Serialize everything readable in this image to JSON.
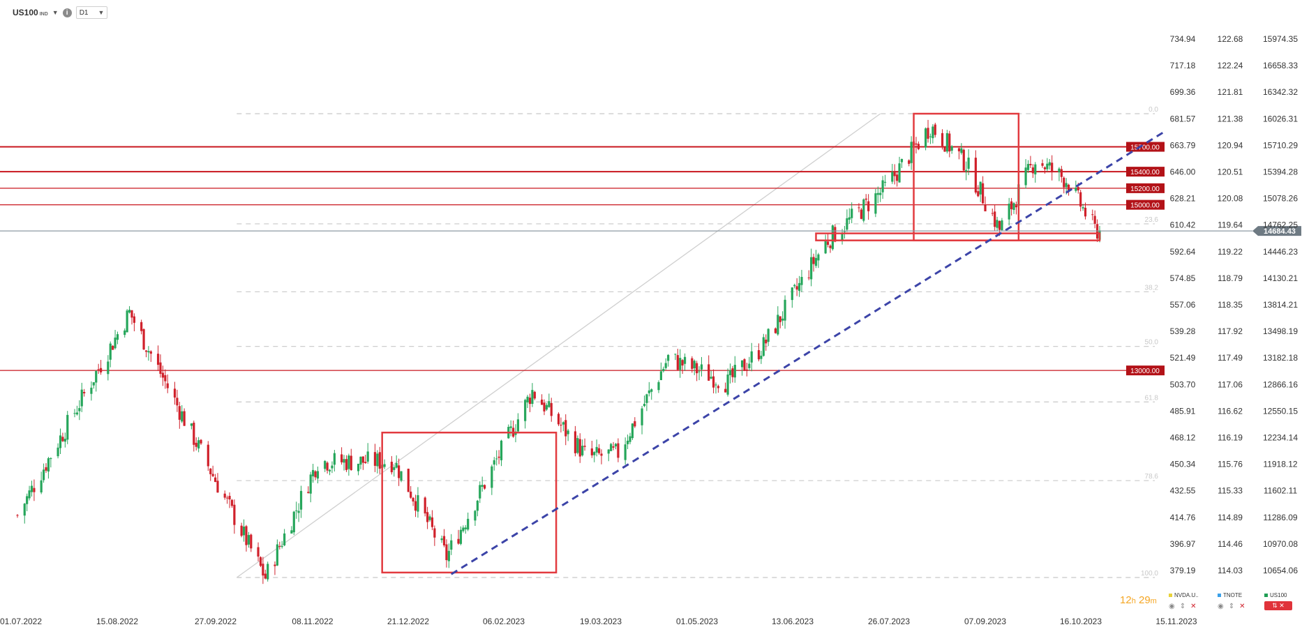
{
  "header": {
    "symbol": "US100",
    "symbol_sub": "IND",
    "timeframe": "D1"
  },
  "chart_data": {
    "type": "candlestick",
    "price_range": [
      10500,
      16100
    ],
    "last_price_label": "14684.43",
    "x_dates": [
      "01.07.2022",
      "15.08.2022",
      "27.09.2022",
      "08.11.2022",
      "21.12.2022",
      "06.02.2023",
      "19.03.2023",
      "01.05.2023",
      "13.06.2023",
      "26.07.2023",
      "07.09.2023",
      "16.10.2023",
      "15.11.2023"
    ],
    "price_axis": [
      "15974.35",
      "16658.33",
      "16342.32",
      "16026.31",
      "15710.29",
      "15394.28",
      "15078.26",
      "14762.25",
      "14446.23",
      "14130.21",
      "13814.21",
      "13498.19",
      "13182.18",
      "12866.16",
      "12550.15",
      "12234.14",
      "11918.12",
      "11602.11",
      "11286.09",
      "10970.08",
      "10654.06"
    ],
    "axis2": [
      "122.68",
      "122.24",
      "121.81",
      "121.38",
      "120.94",
      "120.51",
      "120.08",
      "119.64",
      "119.22",
      "118.79",
      "118.35",
      "117.92",
      "117.49",
      "117.06",
      "116.62",
      "116.19",
      "115.76",
      "115.33",
      "114.89",
      "114.46",
      "114.03"
    ],
    "axis1": [
      "734.94",
      "717.18",
      "699.36",
      "681.57",
      "663.79",
      "646.00",
      "628.21",
      "610.42",
      "592.64",
      "574.85",
      "557.06",
      "539.28",
      "521.49",
      "503.70",
      "485.91",
      "468.12",
      "450.34",
      "432.55",
      "414.76",
      "396.97",
      "379.19"
    ],
    "horizontal_levels": [
      {
        "label": "15700.00",
        "price": 15700
      },
      {
        "label": "15400.00",
        "price": 15400
      },
      {
        "label": "15200.00",
        "price": 15200
      },
      {
        "label": "15000.00",
        "price": 15000
      },
      {
        "label": "13000.00",
        "price": 13000
      }
    ],
    "fib_levels": [
      {
        "label": "0.0",
        "price": 16100
      },
      {
        "label": "23.6",
        "price": 14770
      },
      {
        "label": "38.2",
        "price": 13950
      },
      {
        "label": "50.0",
        "price": 13290
      },
      {
        "label": "61.8",
        "price": 12620
      },
      {
        "label": "78.6",
        "price": 11670
      },
      {
        "label": "100.0",
        "price": 10500
      }
    ],
    "anchors": [
      {
        "date": "01.07.2022",
        "price": 11250
      },
      {
        "date": "17.08.2022",
        "price": 13700
      },
      {
        "date": "13.10.2022",
        "price": 10500
      },
      {
        "date": "04.11.2022",
        "price": 11900
      },
      {
        "date": "06.12.2022",
        "price": 11900
      },
      {
        "date": "28.12.2022",
        "price": 10750
      },
      {
        "date": "02.02.2023",
        "price": 12750
      },
      {
        "date": "25.02.2023",
        "price": 11950
      },
      {
        "date": "10.03.2023",
        "price": 12000
      },
      {
        "date": "31.03.2023",
        "price": 13150
      },
      {
        "date": "25.04.2023",
        "price": 12850
      },
      {
        "date": "10.05.2023",
        "price": 13300
      },
      {
        "date": "05.06.2023",
        "price": 14550
      },
      {
        "date": "30.06.2023",
        "price": 15200
      },
      {
        "date": "19.07.2023",
        "price": 15950
      },
      {
        "date": "03.08.2023",
        "price": 15500
      },
      {
        "date": "17.08.2023",
        "price": 14700
      },
      {
        "date": "01.09.2023",
        "price": 15550
      },
      {
        "date": "14.09.2023",
        "price": 15300
      },
      {
        "date": "26.09.2023",
        "price": 14700
      },
      {
        "date": "28.09.2023",
        "price": 14684
      }
    ],
    "legend": [
      {
        "name": "NVDA.U..",
        "color": "#e8d23a"
      },
      {
        "name": "TNOTE",
        "color": "#3aa0e8"
      },
      {
        "name": "US100",
        "color": "#1f9e54"
      }
    ]
  },
  "footer": {
    "timer_hours": "12",
    "timer_h_unit": "h",
    "timer_minutes": "29",
    "timer_m_unit": "m"
  },
  "colors": {
    "up": "#26a65b",
    "down": "#d0212b",
    "level_red": "#c9161e",
    "trend": "#3c44a8",
    "fib": "#c8c8c8"
  }
}
